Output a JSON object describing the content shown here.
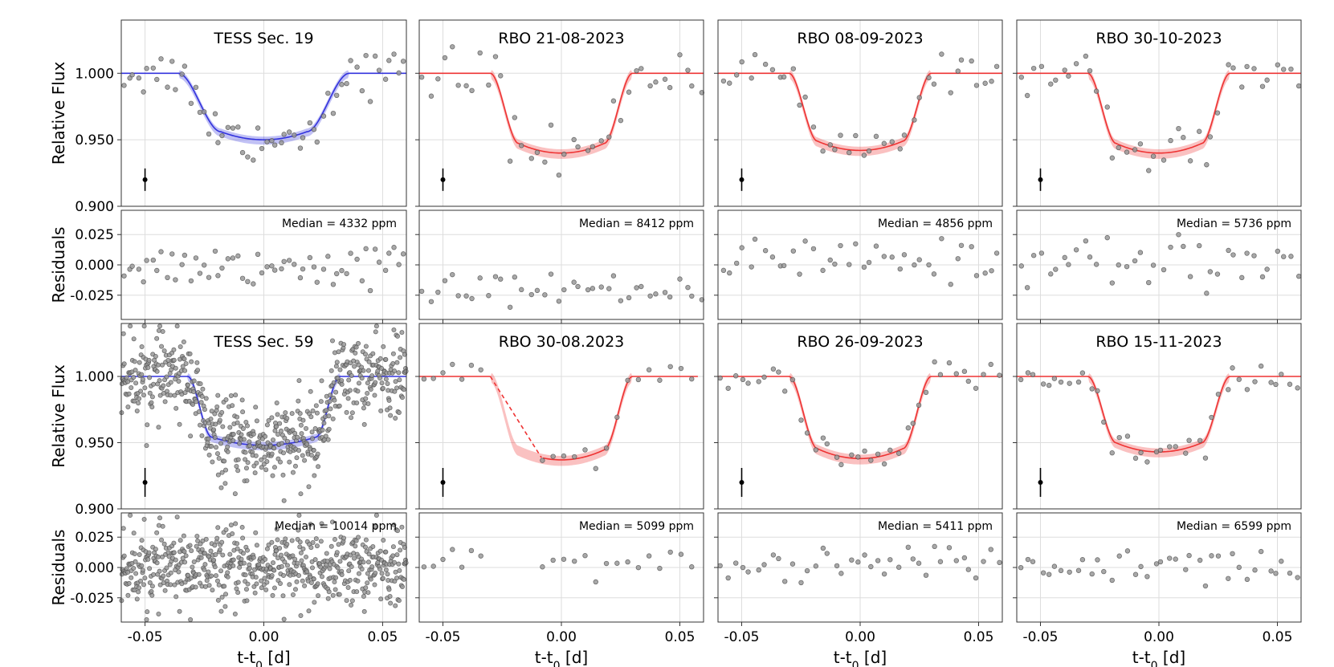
{
  "chart_data": {
    "type": "scatter",
    "description_axes": {
      "xlabel": "t-t",
      "xlabel_sub": "0",
      "xlabel_suffix": " [d]",
      "flux_ylabel": "Relative Flux",
      "resid_ylabel": "Residuals",
      "xlim": [
        -0.06,
        0.06
      ],
      "xticks": [
        -0.05,
        0.0,
        0.05
      ],
      "xtick_labels": [
        "-0.05",
        "0.00",
        "0.05"
      ],
      "flux_ylim": [
        0.9,
        1.04
      ],
      "flux_yticks": [
        0.9,
        0.95,
        1.0
      ],
      "flux_ytick_labels": [
        "0.900",
        "0.950",
        "1.000"
      ],
      "resid_ylim": [
        -0.045,
        0.045
      ],
      "resid_yticks": [
        -0.025,
        0.0,
        0.025
      ],
      "resid_ytick_labels": [
        "-0.025",
        "0.000",
        "0.025"
      ]
    },
    "panels": [
      {
        "title": "TESS Sec. 19",
        "median_label": "Median =",
        "median_value": "4332 ppm",
        "color": "#3333dd",
        "depth": 0.95,
        "half_duration": 0.036,
        "ingress": 0.018,
        "npts": 60,
        "scatter": 0.008,
        "errbar": true,
        "dashed_gap": false,
        "spread": "tight"
      },
      {
        "title": "RBO 21-08-2023",
        "median_label": "Median =",
        "median_value": "8412 ppm",
        "color": "#ee3333",
        "depth": 0.94,
        "half_duration": 0.03,
        "ingress": 0.012,
        "npts": 40,
        "scatter": 0.01,
        "errbar": true,
        "dashed_gap": false,
        "spread": "low"
      },
      {
        "title": "RBO 08-09-2023",
        "median_label": "Median =",
        "median_value": "4856 ppm",
        "color": "#ee3333",
        "depth": 0.942,
        "half_duration": 0.03,
        "ingress": 0.012,
        "npts": 40,
        "scatter": 0.006,
        "errbar": true,
        "dashed_gap": false,
        "spread": "mid"
      },
      {
        "title": "RBO 30-10-2023",
        "median_label": "Median =",
        "median_value": "5736 ppm",
        "color": "#ee3333",
        "depth": 0.94,
        "half_duration": 0.03,
        "ingress": 0.012,
        "npts": 40,
        "scatter": 0.008,
        "errbar": true,
        "dashed_gap": false,
        "spread": "mid"
      },
      {
        "title": "TESS Sec. 59",
        "median_label": "Median =",
        "median_value": "10014 ppm",
        "color": "#3333dd",
        "depth": 0.948,
        "half_duration": 0.032,
        "ingress": 0.01,
        "npts": 600,
        "scatter": 0.015,
        "errbar": true,
        "dashed_gap": false,
        "spread": "dense"
      },
      {
        "title": "RBO 30-08.2023",
        "median_label": "Median =",
        "median_value": "5099 ppm",
        "color": "#ee3333",
        "depth": 0.937,
        "half_duration": 0.03,
        "ingress": 0.012,
        "npts": 22,
        "scatter": 0.005,
        "errbar": true,
        "dashed_gap": true,
        "spread": "mid"
      },
      {
        "title": "RBO 26-09-2023",
        "median_label": "Median =",
        "median_value": "5411 ppm",
        "color": "#ee3333",
        "depth": 0.938,
        "half_duration": 0.03,
        "ingress": 0.012,
        "npts": 40,
        "scatter": 0.006,
        "errbar": true,
        "dashed_gap": false,
        "spread": "mid"
      },
      {
        "title": "RBO 15-11-2023",
        "median_label": "Median =",
        "median_value": "6599 ppm",
        "color": "#ee3333",
        "depth": 0.943,
        "half_duration": 0.03,
        "ingress": 0.012,
        "npts": 40,
        "scatter": 0.006,
        "errbar": true,
        "dashed_gap": false,
        "spread": "mid"
      }
    ]
  }
}
